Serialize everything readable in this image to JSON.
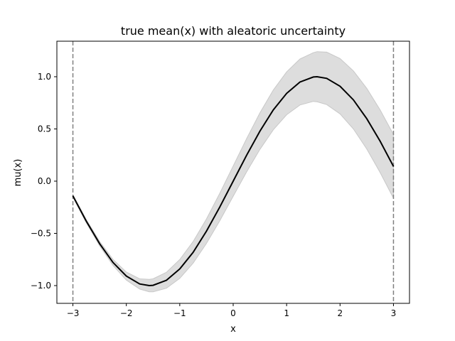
{
  "chart_data": {
    "type": "line",
    "title": "true mean(x) with aleatoric uncertainty",
    "xlabel": "x",
    "ylabel": "mu(x)",
    "xlim": [
      -3.3,
      3.3
    ],
    "ylim": [
      -1.17,
      1.34
    ],
    "xticks": [
      -3,
      -2,
      -1,
      0,
      1,
      2,
      3
    ],
    "xtick_labels": [
      "−3",
      "−2",
      "−1",
      "0",
      "1",
      "2",
      "3"
    ],
    "yticks": [
      -1.0,
      -0.5,
      0.0,
      0.5,
      1.0
    ],
    "ytick_labels": [
      "−1.0",
      "−0.5",
      "0.0",
      "0.5",
      "1.0"
    ],
    "grid": false,
    "series": [
      {
        "type": "line",
        "color": "#000000",
        "x": [
          -3.0,
          -2.75,
          -2.5,
          -2.25,
          -2.0,
          -1.75,
          -1.5708,
          -1.5,
          -1.25,
          -1.0,
          -0.75,
          -0.5,
          -0.25,
          0.0,
          0.25,
          0.5,
          0.75,
          1.0,
          1.25,
          1.5,
          1.5708,
          1.75,
          2.0,
          2.25,
          2.5,
          2.75,
          3.0
        ],
        "y": [
          -0.141,
          -0.382,
          -0.598,
          -0.778,
          -0.909,
          -0.984,
          -1.0,
          -0.997,
          -0.949,
          -0.841,
          -0.682,
          -0.479,
          -0.247,
          0.0,
          0.247,
          0.479,
          0.682,
          0.841,
          0.949,
          0.997,
          1.0,
          0.984,
          0.909,
          0.778,
          0.598,
          0.382,
          0.141
        ]
      },
      {
        "type": "band",
        "color": "#dddddd",
        "edge_color": "#c8c8c8",
        "x": [
          -3.0,
          -2.75,
          -2.5,
          -2.25,
          -2.0,
          -1.75,
          -1.5708,
          -1.5,
          -1.25,
          -1.0,
          -0.75,
          -0.5,
          -0.25,
          0.0,
          0.25,
          0.5,
          0.75,
          1.0,
          1.25,
          1.5,
          1.5708,
          1.75,
          2.0,
          2.25,
          2.5,
          2.75,
          3.0
        ],
        "half_width": [
          0.012,
          0.015,
          0.021,
          0.029,
          0.038,
          0.049,
          0.059,
          0.062,
          0.076,
          0.09,
          0.103,
          0.117,
          0.131,
          0.145,
          0.159,
          0.175,
          0.19,
          0.205,
          0.22,
          0.233,
          0.24,
          0.251,
          0.265,
          0.278,
          0.29,
          0.3,
          0.305
        ]
      }
    ],
    "vlines": [
      {
        "x": -3.0,
        "style": "dashed",
        "color": "#808080"
      },
      {
        "x": 3.0,
        "style": "dashed",
        "color": "#808080"
      }
    ]
  }
}
